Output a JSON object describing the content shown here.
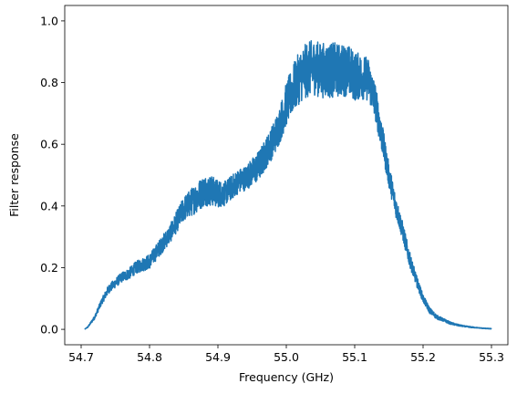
{
  "chart_data": {
    "type": "line",
    "title": "",
    "xlabel": "Frequency (GHz)",
    "ylabel": "Filter response",
    "xlim": [
      54.676,
      55.324
    ],
    "ylim": [
      -0.05,
      1.05
    ],
    "grid": false,
    "legend": "none",
    "x_ticks": [
      54.7,
      54.8,
      54.9,
      55.0,
      55.1,
      55.2,
      55.3
    ],
    "x_tick_labels": [
      "54.7",
      "54.8",
      "54.9",
      "55.0",
      "55.1",
      "55.2",
      "55.3"
    ],
    "y_ticks": [
      0.0,
      0.2,
      0.4,
      0.6,
      0.8,
      1.0
    ],
    "y_tick_labels": [
      "0.0",
      "0.2",
      "0.4",
      "0.6",
      "0.8",
      "1.0"
    ],
    "series": [
      {
        "color": "#1f77b4",
        "x": [
          54.705,
          54.71,
          54.72,
          54.73,
          54.74,
          54.75,
          54.76,
          54.77,
          54.78,
          54.79,
          54.8,
          54.81,
          54.82,
          54.83,
          54.84,
          54.85,
          54.86,
          54.87,
          54.88,
          54.89,
          54.9,
          54.91,
          54.92,
          54.93,
          54.94,
          54.95,
          54.96,
          54.97,
          54.98,
          54.99,
          55.0,
          55.01,
          55.02,
          55.03,
          55.04,
          55.05,
          55.06,
          55.07,
          55.08,
          55.09,
          55.1,
          55.11,
          55.12,
          55.13,
          55.14,
          55.15,
          55.16,
          55.17,
          55.18,
          55.19,
          55.2,
          55.21,
          55.22,
          55.23,
          55.24,
          55.25,
          55.26,
          55.27,
          55.28,
          55.29,
          55.3
        ],
        "y": [
          0.0,
          0.008,
          0.04,
          0.09,
          0.13,
          0.15,
          0.17,
          0.18,
          0.2,
          0.21,
          0.22,
          0.25,
          0.28,
          0.31,
          0.35,
          0.39,
          0.41,
          0.43,
          0.45,
          0.45,
          0.44,
          0.44,
          0.46,
          0.48,
          0.49,
          0.51,
          0.53,
          0.57,
          0.61,
          0.66,
          0.73,
          0.78,
          0.82,
          0.84,
          0.85,
          0.84,
          0.84,
          0.84,
          0.84,
          0.84,
          0.82,
          0.82,
          0.81,
          0.74,
          0.62,
          0.5,
          0.4,
          0.32,
          0.23,
          0.16,
          0.1,
          0.06,
          0.04,
          0.03,
          0.02,
          0.014,
          0.01,
          0.007,
          0.005,
          0.003,
          0.002
        ],
        "noise": [
          0.0,
          0.002,
          0.006,
          0.01,
          0.014,
          0.015,
          0.016,
          0.018,
          0.02,
          0.022,
          0.024,
          0.026,
          0.028,
          0.03,
          0.035,
          0.04,
          0.045,
          0.05,
          0.05,
          0.05,
          0.045,
          0.04,
          0.04,
          0.04,
          0.04,
          0.045,
          0.05,
          0.05,
          0.055,
          0.06,
          0.07,
          0.08,
          0.085,
          0.09,
          0.09,
          0.09,
          0.09,
          0.09,
          0.085,
          0.085,
          0.08,
          0.075,
          0.07,
          0.06,
          0.05,
          0.04,
          0.035,
          0.03,
          0.025,
          0.018,
          0.013,
          0.01,
          0.007,
          0.005,
          0.004,
          0.003,
          0.002,
          0.002,
          0.001,
          0.001,
          0.001
        ]
      }
    ]
  }
}
